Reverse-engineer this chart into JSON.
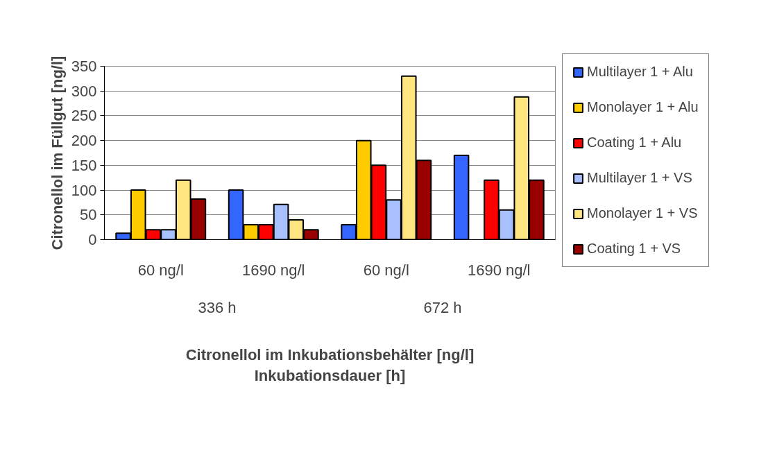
{
  "chart_data": {
    "type": "bar",
    "ylabel": "Citronellol im Füllgut [ng/l]",
    "xlabel": "Citronellol im Inkubationsbehälter [ng/l]\nInkubationsdauer [h]",
    "categories": [
      "60 ng/l",
      "1690 ng/l",
      "60 ng/l",
      "1690 ng/l"
    ],
    "annotations": [
      "336 h",
      "672 h"
    ],
    "series": [
      {
        "name": "Multilayer 1 + Alu",
        "color": "#3366ff",
        "values": [
          13,
          100,
          30,
          170
        ]
      },
      {
        "name": "Monolayer 1 + Alu",
        "color": "#ffcc00",
        "values": [
          100,
          30,
          200,
          null
        ]
      },
      {
        "name": "Coating 1 + Alu",
        "color": "#ff0000",
        "values": [
          20,
          30,
          150,
          120
        ]
      },
      {
        "name": "Multilayer 1 + VS",
        "color": "#a9c0ff",
        "values": [
          20,
          71,
          80,
          60
        ]
      },
      {
        "name": "Monolayer 1 + VS",
        "color": "#ffe680",
        "values": [
          120,
          40,
          330,
          288
        ]
      },
      {
        "name": "Coating 1 + VS",
        "color": "#990000",
        "values": [
          82,
          20,
          160,
          120
        ]
      }
    ],
    "ylim": [
      0,
      350
    ],
    "yticks": [
      0,
      50,
      100,
      150,
      200,
      250,
      300,
      350
    ],
    "grid": "y",
    "legend": "right"
  }
}
